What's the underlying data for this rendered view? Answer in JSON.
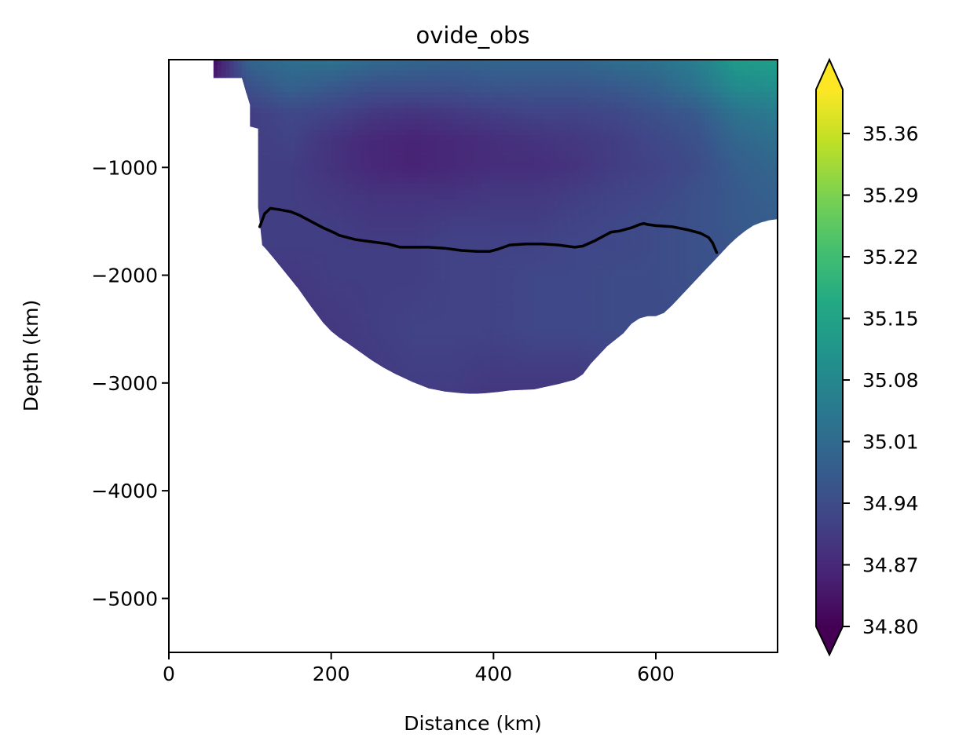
{
  "chart_data": {
    "type": "heatmap",
    "title": "ovide_obs",
    "xlabel": "Distance (km)",
    "ylabel": "Depth (km)",
    "xlim": [
      0,
      750
    ],
    "ylim": [
      -5500,
      0
    ],
    "xticks": [
      0,
      200,
      400,
      600
    ],
    "xtick_labels": [
      "0",
      "200",
      "400",
      "600"
    ],
    "yticks": [
      -1000,
      -2000,
      -3000,
      -4000,
      -5000
    ],
    "ytick_labels": [
      "−1000",
      "−2000",
      "−3000",
      "−4000",
      "−5000"
    ],
    "grid": false,
    "colormap": "viridis",
    "colorbar": {
      "min": 34.8,
      "max": 35.41,
      "extend": "both",
      "ticks": [
        34.8,
        34.87,
        34.94,
        35.01,
        35.08,
        35.15,
        35.22,
        35.29,
        35.36
      ],
      "tick_labels": [
        "34.80",
        "34.87",
        "34.94",
        "35.01",
        "35.08",
        "35.15",
        "35.22",
        "35.29",
        "35.36"
      ]
    },
    "bottom_profile": {
      "distance": [
        55,
        55,
        90,
        95,
        100,
        100,
        110,
        110,
        115,
        120,
        130,
        145,
        160,
        175,
        190,
        200,
        210,
        220,
        235,
        250,
        265,
        280,
        300,
        320,
        340,
        360,
        370,
        380,
        390,
        410,
        420,
        450,
        480,
        500,
        510,
        520,
        530,
        540,
        550,
        560,
        570,
        580,
        590,
        600,
        610,
        620,
        630,
        640,
        650,
        660,
        670,
        680,
        690,
        700,
        710,
        720,
        730,
        740,
        750
      ],
      "depth": [
        0,
        -170,
        -170,
        -300,
        -420,
        -620,
        -640,
        -1370,
        -1720,
        -1760,
        -1850,
        -1990,
        -2130,
        -2290,
        -2440,
        -2520,
        -2580,
        -2630,
        -2710,
        -2790,
        -2860,
        -2920,
        -2990,
        -3050,
        -3080,
        -3095,
        -3100,
        -3100,
        -3095,
        -3080,
        -3070,
        -3060,
        -3010,
        -2970,
        -2920,
        -2820,
        -2740,
        -2660,
        -2600,
        -2540,
        -2450,
        -2400,
        -2380,
        -2380,
        -2350,
        -2280,
        -2200,
        -2120,
        -2040,
        -1960,
        -1880,
        -1800,
        -1720,
        -1650,
        -1590,
        -1540,
        -1510,
        -1490,
        -1480
      ]
    },
    "contour_line": {
      "level": null,
      "color": "#000000",
      "x": [
        112,
        118,
        125,
        135,
        150,
        160,
        175,
        190,
        205,
        210,
        230,
        250,
        270,
        285,
        300,
        320,
        340,
        360,
        380,
        395,
        405,
        420,
        440,
        460,
        480,
        500,
        510,
        525,
        535,
        545,
        555,
        570,
        580,
        585,
        590,
        600,
        620,
        640,
        655,
        665,
        670,
        675
      ],
      "y": [
        -1550,
        -1430,
        -1380,
        -1390,
        -1410,
        -1440,
        -1500,
        -1560,
        -1610,
        -1630,
        -1670,
        -1690,
        -1710,
        -1740,
        -1740,
        -1740,
        -1750,
        -1770,
        -1780,
        -1780,
        -1760,
        -1720,
        -1710,
        -1710,
        -1720,
        -1740,
        -1730,
        -1680,
        -1640,
        -1600,
        -1590,
        -1560,
        -1530,
        -1520,
        -1530,
        -1540,
        -1550,
        -1580,
        -1610,
        -1650,
        -1700,
        -1790
      ]
    },
    "salinity_field_knots": {
      "distance": [
        0,
        50,
        100,
        150,
        200,
        250,
        300,
        350,
        400,
        450,
        500,
        550,
        600,
        650,
        700,
        750
      ],
      "depth": [
        0,
        -250,
        -500,
        -750,
        -1000,
        -1250,
        -1500,
        -1750,
        -2000,
        -2500,
        -3000,
        -3200
      ],
      "values": [
        [
          34.8,
          34.8,
          35.0,
          35.02,
          35.03,
          35.01,
          35.0,
          34.99,
          35.0,
          35.0,
          35.0,
          35.02,
          35.03,
          35.06,
          35.13,
          35.14
        ],
        [
          34.85,
          34.85,
          34.95,
          34.99,
          34.97,
          34.95,
          34.95,
          34.95,
          34.96,
          34.96,
          34.96,
          34.97,
          34.99,
          35.03,
          35.09,
          35.1
        ],
        [
          34.91,
          34.91,
          34.91,
          34.93,
          34.92,
          34.9,
          34.89,
          34.9,
          34.91,
          34.92,
          34.92,
          34.93,
          34.95,
          34.97,
          35.03,
          35.05
        ],
        [
          34.91,
          34.91,
          34.91,
          34.92,
          34.89,
          34.87,
          34.86,
          34.87,
          34.88,
          34.89,
          34.9,
          34.91,
          34.93,
          34.95,
          35.0,
          35.02
        ],
        [
          34.91,
          34.91,
          34.91,
          34.91,
          34.89,
          34.87,
          34.86,
          34.87,
          34.88,
          34.88,
          34.89,
          34.91,
          34.92,
          34.94,
          34.98,
          35.0
        ],
        [
          34.91,
          34.91,
          34.91,
          34.91,
          34.9,
          34.89,
          34.89,
          34.89,
          34.9,
          34.9,
          34.91,
          34.92,
          34.93,
          34.95,
          34.97,
          34.99
        ],
        [
          34.91,
          34.91,
          34.91,
          34.91,
          34.91,
          34.9,
          34.9,
          34.91,
          34.91,
          34.91,
          34.92,
          34.93,
          34.94,
          34.95,
          34.97,
          34.98
        ],
        [
          34.91,
          34.91,
          34.91,
          34.91,
          34.91,
          34.91,
          34.91,
          34.92,
          34.92,
          34.92,
          34.93,
          34.93,
          34.94,
          34.95,
          34.96,
          34.97
        ],
        [
          34.9,
          34.9,
          34.9,
          34.9,
          34.91,
          34.91,
          34.91,
          34.92,
          34.92,
          34.93,
          34.93,
          34.94,
          34.94,
          34.95,
          34.95,
          34.96
        ],
        [
          34.89,
          34.89,
          34.89,
          34.89,
          34.9,
          34.91,
          34.92,
          34.92,
          34.92,
          34.93,
          34.93,
          34.94,
          34.94,
          34.94,
          34.94,
          34.94
        ],
        [
          34.88,
          34.88,
          34.88,
          34.88,
          34.89,
          34.9,
          34.91,
          34.91,
          34.9,
          34.9,
          34.9,
          34.91,
          34.91,
          34.91,
          34.91,
          34.91
        ],
        [
          34.88,
          34.88,
          34.88,
          34.88,
          34.89,
          34.9,
          34.9,
          34.9,
          34.89,
          34.89,
          34.89,
          34.9,
          34.9,
          34.9,
          34.9,
          34.9
        ]
      ]
    }
  }
}
